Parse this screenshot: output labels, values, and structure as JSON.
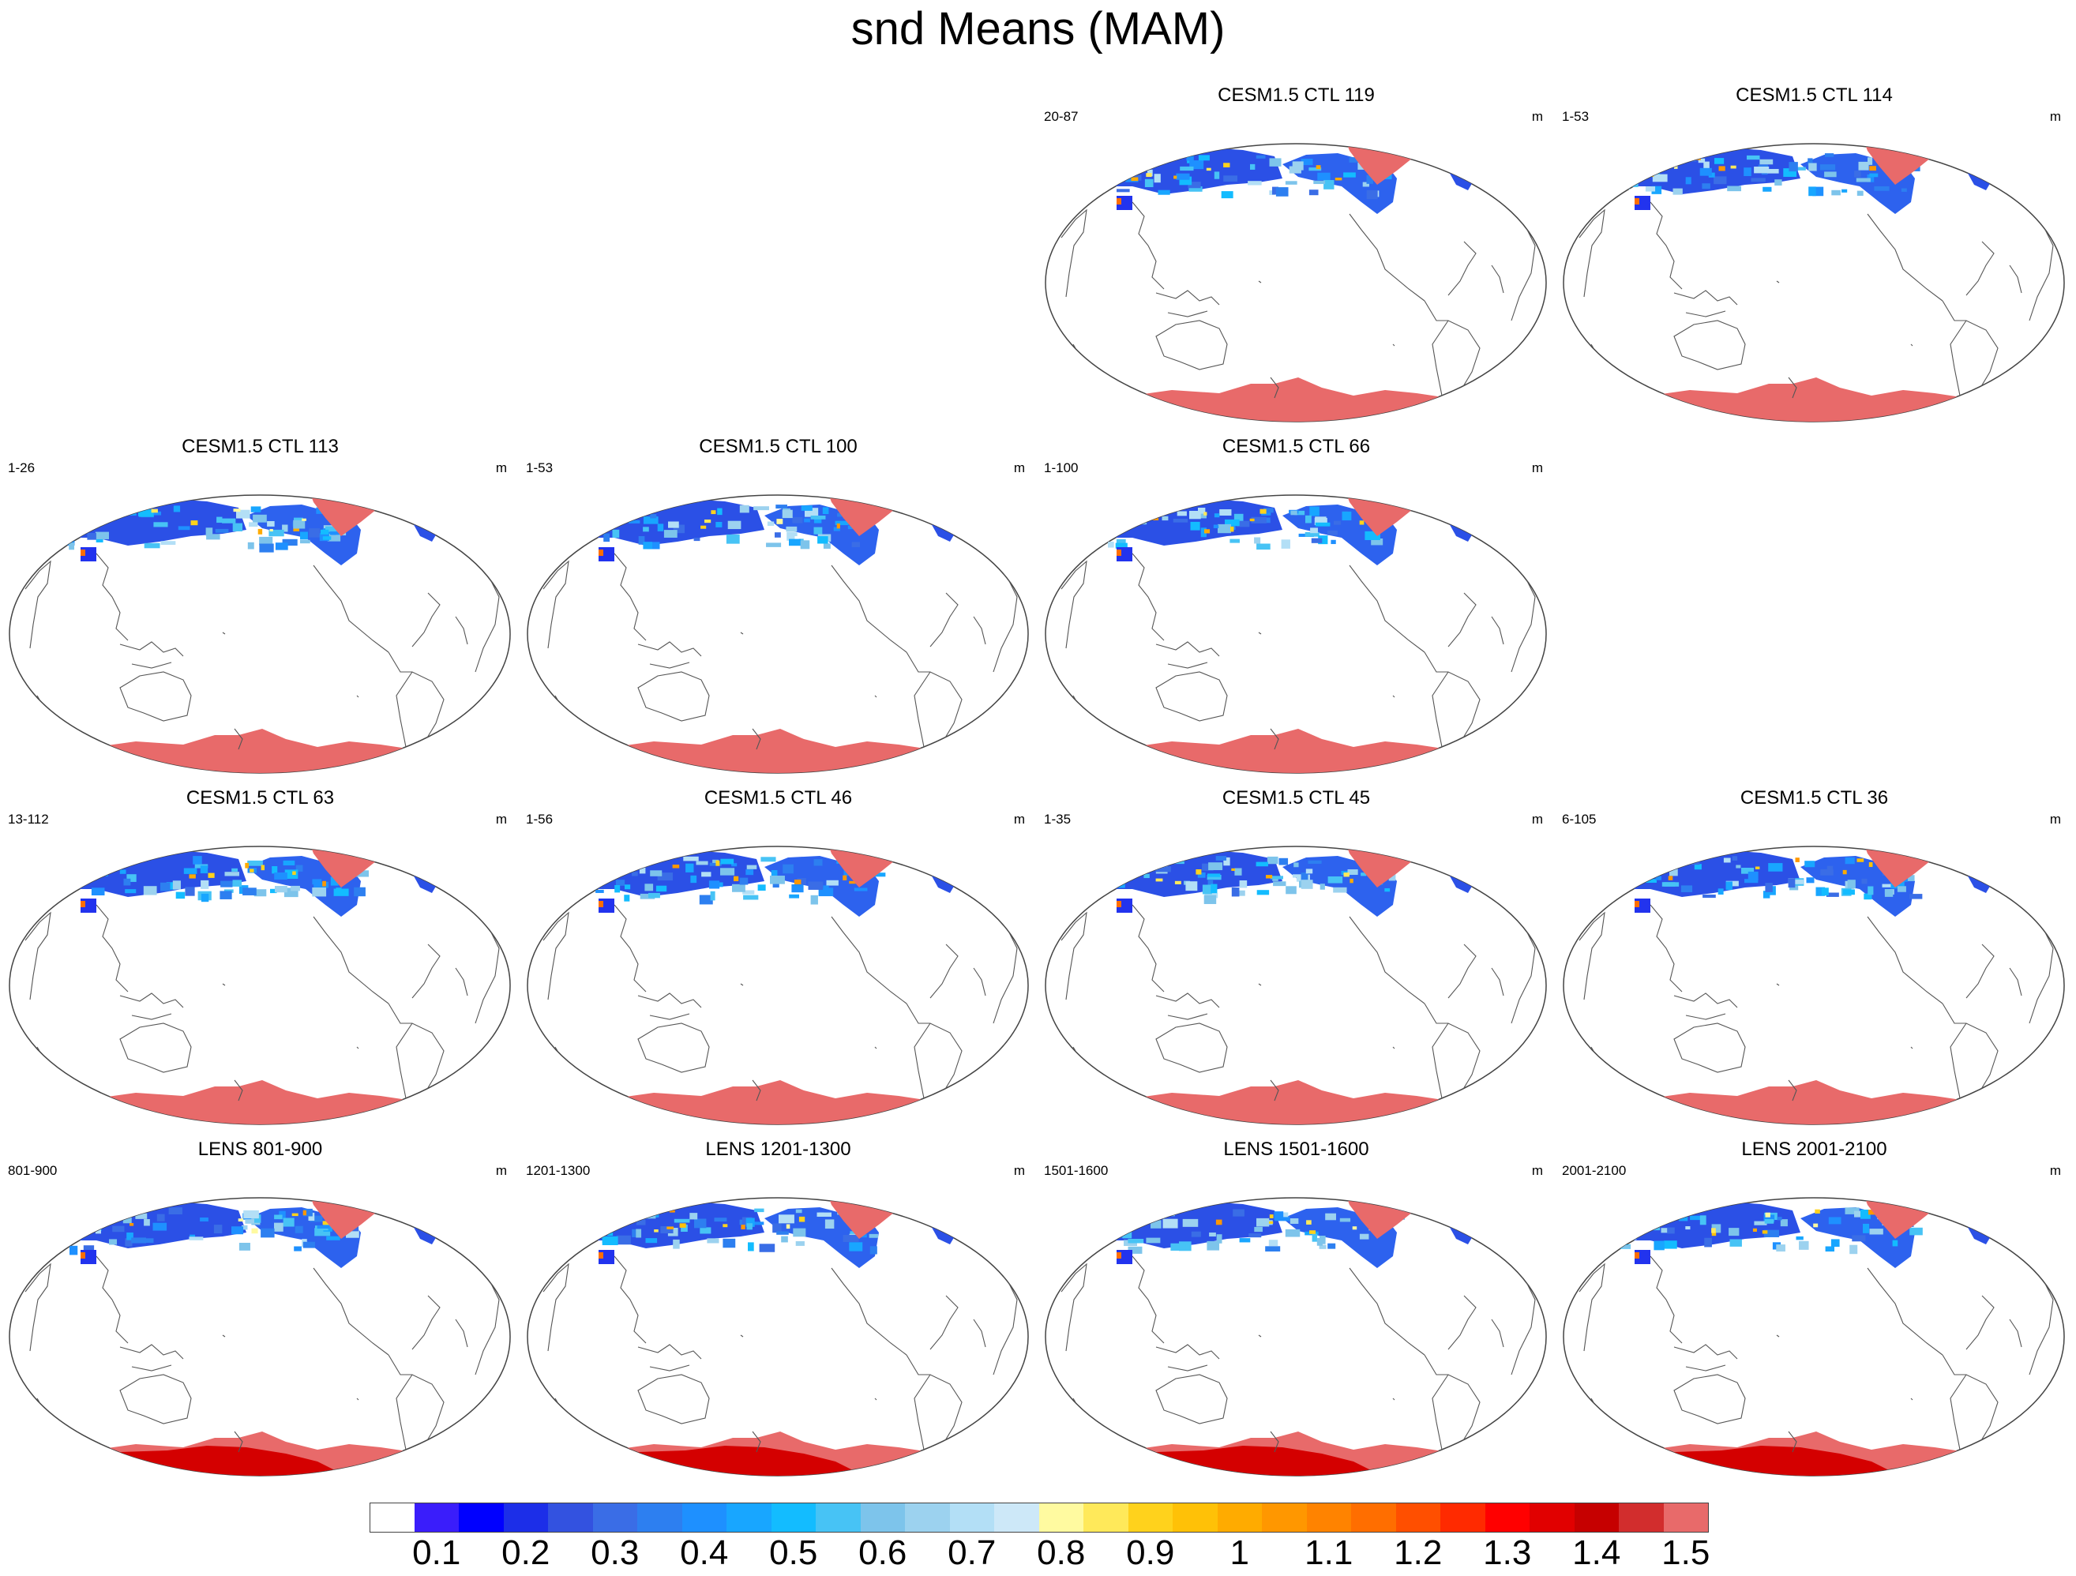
{
  "figure": {
    "title": "snd Means (MAM)",
    "units": "m"
  },
  "panels": [
    {
      "title": "CESM1.5 CTL 119",
      "years": "20-87",
      "units": "m",
      "kind": "ctl"
    },
    {
      "title": "CESM1.5 CTL 114",
      "years": "1-53",
      "units": "m",
      "kind": "ctl"
    },
    {
      "title": "CESM1.5 CTL 113",
      "years": "1-26",
      "units": "m",
      "kind": "ctl"
    },
    {
      "title": "CESM1.5 CTL 100",
      "years": "1-53",
      "units": "m",
      "kind": "ctl"
    },
    {
      "title": "CESM1.5 CTL 66",
      "years": "1-100",
      "units": "m",
      "kind": "ctl"
    },
    {
      "title": "CESM1.5 CTL 63",
      "years": "13-112",
      "units": "m",
      "kind": "ctl"
    },
    {
      "title": "CESM1.5 CTL 46",
      "years": "1-56",
      "units": "m",
      "kind": "ctl"
    },
    {
      "title": "CESM1.5 CTL 45",
      "years": "1-35",
      "units": "m",
      "kind": "ctl"
    },
    {
      "title": "CESM1.5 CTL 36",
      "years": "6-105",
      "units": "m",
      "kind": "ctl"
    },
    {
      "title": "LENS 801-900",
      "years": "801-900",
      "units": "m",
      "kind": "lens"
    },
    {
      "title": "LENS 1201-1300",
      "years": "1201-1300",
      "units": "m",
      "kind": "lens"
    },
    {
      "title": "LENS 1501-1600",
      "years": "1501-1600",
      "units": "m",
      "kind": "lens"
    },
    {
      "title": "LENS 2001-2100",
      "years": "2001-2100",
      "units": "m",
      "kind": "lens"
    }
  ],
  "colorbar": {
    "colors": [
      "#ffffff",
      "#3a1dfb",
      "#0000ff",
      "#1c2ee8",
      "#3352e0",
      "#3a6de6",
      "#2d7ff0",
      "#1e90ff",
      "#18a6ff",
      "#13bcff",
      "#47c3f5",
      "#7dc4eb",
      "#9cd2ef",
      "#b3dff6",
      "#cde8f8",
      "#fffaa0",
      "#ffe95a",
      "#ffd21c",
      "#ffc107",
      "#ffab00",
      "#ff9700",
      "#ff8300",
      "#ff6e00",
      "#ff4f00",
      "#ff2a00",
      "#ff0000",
      "#e10000",
      "#c60000",
      "#d22d2d",
      "#e86a6a"
    ],
    "labels": [
      "0.1",
      "0.2",
      "0.3",
      "0.4",
      "0.5",
      "0.6",
      "0.7",
      "0.8",
      "0.9",
      "1",
      "1.1",
      "1.2",
      "1.3",
      "1.4",
      "1.5"
    ]
  }
}
